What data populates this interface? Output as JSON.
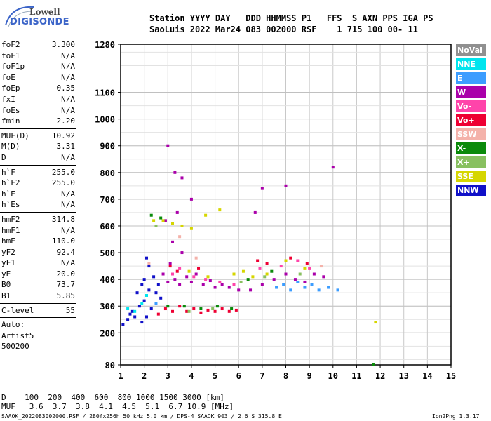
{
  "logo": {
    "line1": "Lowell",
    "line2": "DIGISONDE"
  },
  "header": {
    "line1": "Station YYYY DAY   DDD HHMMSS P1   FFS  S AXN PPS IGA PS",
    "line2": "SaoLuis 2022 Mar24 083 002000 RSF    1 715 100 00- 11"
  },
  "params_group1": [
    {
      "name": "foF2",
      "value": "3.300"
    },
    {
      "name": "foF1",
      "value": "N/A"
    },
    {
      "name": "foF1p",
      "value": "N/A"
    },
    {
      "name": "foE",
      "value": "N/A"
    },
    {
      "name": "foEp",
      "value": "0.35"
    },
    {
      "name": "fxI",
      "value": "N/A"
    },
    {
      "name": "foEs",
      "value": "N/A"
    },
    {
      "name": "fmin",
      "value": "2.20"
    }
  ],
  "params_group2": [
    {
      "name": "MUF(D)",
      "value": "10.92"
    },
    {
      "name": "M(D)",
      "value": "3.31"
    },
    {
      "name": "D",
      "value": "N/A"
    }
  ],
  "params_group3": [
    {
      "name": "h`F",
      "value": "255.0"
    },
    {
      "name": "h`F2",
      "value": "255.0"
    },
    {
      "name": "h`E",
      "value": "N/A"
    },
    {
      "name": "h`Es",
      "value": "N/A"
    }
  ],
  "params_group4": [
    {
      "name": "hmF2",
      "value": "314.8"
    },
    {
      "name": "hmF1",
      "value": "N/A"
    },
    {
      "name": "hmE",
      "value": "110.0"
    },
    {
      "name": "yF2",
      "value": "92.4"
    },
    {
      "name": "yF1",
      "value": "N/A"
    },
    {
      "name": "yE",
      "value": "20.0"
    },
    {
      "name": "B0",
      "value": "73.7"
    },
    {
      "name": "B1",
      "value": "5.85"
    }
  ],
  "params_group5": [
    {
      "name": "C-level",
      "value": "55"
    }
  ],
  "auto": {
    "line1": "Auto:",
    "line2": "Artist5",
    "line3": "500200"
  },
  "legend": [
    {
      "label": "NoVal",
      "bg": "#909090",
      "fg": "#ffffff"
    },
    {
      "label": "NNE",
      "bg": "#00e5ee",
      "fg": "#ffffff"
    },
    {
      "label": "E",
      "bg": "#3c9dff",
      "fg": "#ffffff"
    },
    {
      "label": "W",
      "bg": "#aa00aa",
      "fg": "#ffffff"
    },
    {
      "label": "Vo-",
      "bg": "#ff44aa",
      "fg": "#ffffff"
    },
    {
      "label": "Vo+",
      "bg": "#ee0033",
      "fg": "#ffffff"
    },
    {
      "label": "SSW",
      "bg": "#f4b2aa",
      "fg": "#ffffff"
    },
    {
      "label": "X-",
      "bg": "#0a8a0a",
      "fg": "#ffffff"
    },
    {
      "label": "X+",
      "bg": "#88c060",
      "fg": "#ffffff"
    },
    {
      "label": "SSE",
      "bg": "#d6d600",
      "fg": "#ffffff"
    },
    {
      "label": "NNW",
      "bg": "#1010c8",
      "fg": "#ffffff"
    }
  ],
  "footer": {
    "line1": "D    100  200  400  600  800 1000 1500 3000 [km]",
    "line2": "MUF   3.6  3.7  3.8  4.1  4.5  5.1  6.7 10.9 [MHz]",
    "line3": "SAAOK_2022083002000.RSF / 280fx256h 50 kHz 5.0 km / DPS-4 SAAOK 903 / 2.6 S 315.8 E",
    "version": "Ion2Png 1.3.17"
  },
  "chart_data": {
    "type": "scatter",
    "title": "",
    "xlabel": "",
    "ylabel": "",
    "xlim": [
      1,
      15
    ],
    "ylim": [
      80,
      1280
    ],
    "xticks": [
      "1",
      "2",
      "3",
      "4",
      "5",
      "6",
      "7",
      "8",
      "9",
      "10",
      "11",
      "12",
      "13",
      "14",
      "15"
    ],
    "yticks": [
      "80",
      "200",
      "300",
      "400",
      "500",
      "600",
      "700",
      "800",
      "900",
      "1000",
      "1100",
      "1280"
    ],
    "ytick_values": [
      80,
      200,
      300,
      400,
      500,
      600,
      700,
      800,
      900,
      1000,
      1100,
      1280
    ],
    "grid": true,
    "legend_position": "right",
    "series": [
      {
        "name": "NNW",
        "color": "#1010c8",
        "points": [
          [
            1.1,
            230
          ],
          [
            1.3,
            250
          ],
          [
            1.5,
            280
          ],
          [
            1.6,
            260
          ],
          [
            1.8,
            300
          ],
          [
            1.9,
            240
          ],
          [
            2.0,
            320
          ],
          [
            2.1,
            260
          ],
          [
            2.2,
            360
          ],
          [
            2.3,
            290
          ],
          [
            2.4,
            410
          ],
          [
            2.0,
            400
          ],
          [
            1.9,
            380
          ],
          [
            2.1,
            480
          ],
          [
            2.5,
            350
          ],
          [
            2.6,
            380
          ],
          [
            1.7,
            350
          ],
          [
            1.4,
            270
          ],
          [
            2.2,
            450
          ],
          [
            2.7,
            330
          ]
        ]
      },
      {
        "name": "NNE",
        "color": "#00e5ee",
        "points": [
          [
            1.3,
            290
          ],
          [
            1.6,
            280
          ],
          [
            1.9,
            310
          ],
          [
            2.1,
            340
          ]
        ]
      },
      {
        "name": "W",
        "color": "#aa00aa",
        "points": [
          [
            2.8,
            420
          ],
          [
            3.0,
            390
          ],
          [
            3.1,
            460
          ],
          [
            3.3,
            400
          ],
          [
            3.5,
            380
          ],
          [
            3.6,
            500
          ],
          [
            3.8,
            410
          ],
          [
            4.0,
            390
          ],
          [
            4.2,
            420
          ],
          [
            4.5,
            380
          ],
          [
            4.8,
            395
          ],
          [
            5.0,
            370
          ],
          [
            5.3,
            380
          ],
          [
            5.6,
            370
          ],
          [
            6.0,
            360
          ],
          [
            6.5,
            360
          ],
          [
            7.0,
            380
          ],
          [
            7.5,
            400
          ],
          [
            8.0,
            420
          ],
          [
            8.4,
            400
          ],
          [
            8.8,
            390
          ],
          [
            9.2,
            420
          ],
          [
            9.6,
            410
          ],
          [
            3.0,
            900
          ],
          [
            3.3,
            800
          ],
          [
            3.6,
            780
          ],
          [
            4.0,
            700
          ],
          [
            6.7,
            650
          ],
          [
            7.0,
            740
          ],
          [
            8.0,
            750
          ],
          [
            2.9,
            620
          ],
          [
            3.2,
            540
          ],
          [
            3.4,
            650
          ],
          [
            10.0,
            820
          ]
        ]
      },
      {
        "name": "Vo-",
        "color": "#ff44aa",
        "points": [
          [
            3.2,
            420
          ],
          [
            3.5,
            440
          ],
          [
            4.1,
            410
          ],
          [
            4.6,
            400
          ],
          [
            5.2,
            390
          ],
          [
            5.8,
            380
          ],
          [
            6.9,
            440
          ],
          [
            7.8,
            450
          ],
          [
            8.5,
            470
          ],
          [
            9.0,
            440
          ]
        ]
      },
      {
        "name": "Vo+",
        "color": "#ee0033",
        "points": [
          [
            2.6,
            270
          ],
          [
            2.9,
            290
          ],
          [
            3.2,
            280
          ],
          [
            3.5,
            300
          ],
          [
            3.8,
            280
          ],
          [
            4.1,
            290
          ],
          [
            4.4,
            275
          ],
          [
            4.7,
            285
          ],
          [
            5.0,
            280
          ],
          [
            5.3,
            290
          ],
          [
            5.6,
            280
          ],
          [
            5.9,
            285
          ],
          [
            3.1,
            450
          ],
          [
            3.4,
            430
          ],
          [
            4.3,
            440
          ],
          [
            6.8,
            470
          ],
          [
            7.2,
            460
          ],
          [
            8.2,
            480
          ],
          [
            8.9,
            460
          ]
        ]
      },
      {
        "name": "E",
        "color": "#3c9dff",
        "points": [
          [
            7.6,
            370
          ],
          [
            7.9,
            380
          ],
          [
            8.2,
            360
          ],
          [
            8.5,
            390
          ],
          [
            8.8,
            370
          ],
          [
            9.1,
            380
          ],
          [
            9.4,
            360
          ],
          [
            9.8,
            370
          ],
          [
            10.2,
            360
          ],
          [
            2.5,
            310
          ]
        ]
      },
      {
        "name": "SSE",
        "color": "#d6d600",
        "points": [
          [
            2.4,
            620
          ],
          [
            2.8,
            620
          ],
          [
            3.2,
            610
          ],
          [
            3.6,
            600
          ],
          [
            4.0,
            590
          ],
          [
            4.6,
            640
          ],
          [
            5.2,
            660
          ],
          [
            5.8,
            420
          ],
          [
            6.2,
            430
          ],
          [
            6.6,
            410
          ],
          [
            7.2,
            420
          ],
          [
            8.0,
            470
          ],
          [
            8.8,
            440
          ],
          [
            11.8,
            240
          ],
          [
            3.9,
            430
          ],
          [
            4.7,
            410
          ]
        ]
      },
      {
        "name": "X-",
        "color": "#0a8a0a",
        "points": [
          [
            2.3,
            640
          ],
          [
            2.7,
            630
          ],
          [
            3.0,
            300
          ],
          [
            3.7,
            300
          ],
          [
            4.4,
            290
          ],
          [
            5.1,
            300
          ],
          [
            5.7,
            290
          ],
          [
            6.4,
            400
          ],
          [
            7.4,
            430
          ],
          [
            11.7,
            80
          ]
        ]
      },
      {
        "name": "X+",
        "color": "#88c060",
        "points": [
          [
            2.5,
            600
          ],
          [
            3.9,
            280
          ],
          [
            4.9,
            290
          ],
          [
            6.1,
            390
          ],
          [
            7.1,
            410
          ],
          [
            8.6,
            420
          ]
        ]
      },
      {
        "name": "SSW",
        "color": "#f4b2aa",
        "points": [
          [
            2.2,
            460
          ],
          [
            3.5,
            560
          ],
          [
            4.2,
            480
          ],
          [
            9.5,
            450
          ]
        ]
      }
    ]
  }
}
